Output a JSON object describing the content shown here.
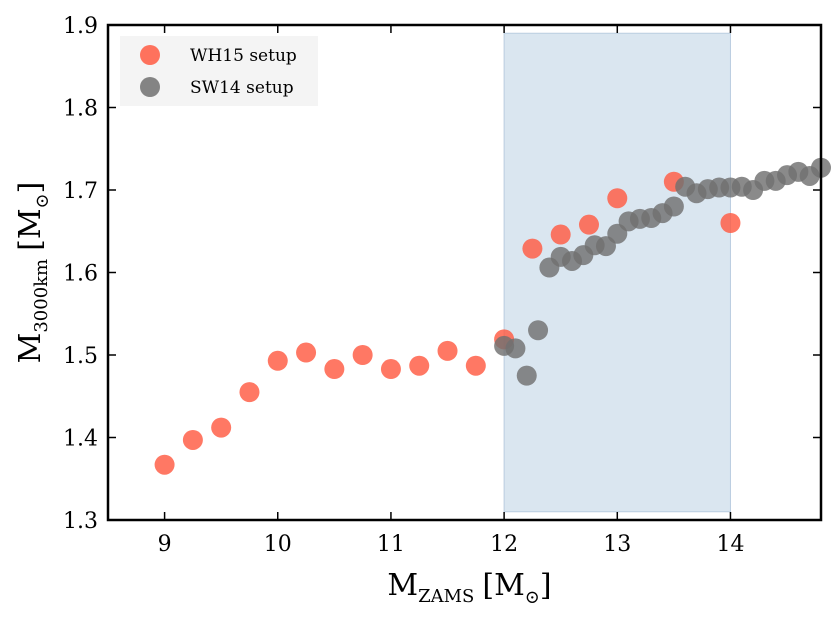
{
  "chart_data": {
    "type": "scatter",
    "title": "",
    "xlabel": {
      "main": "M",
      "sub": "ZAMS",
      "unit_open": "[M",
      "unit_sub": "⊙",
      "unit_close": "]"
    },
    "ylabel": {
      "main": "M",
      "sub": "3000km",
      "unit_open": "[M",
      "unit_sub": "⊙",
      "unit_close": "]"
    },
    "xlim": [
      8.5,
      14.8
    ],
    "ylim": [
      1.3,
      1.9
    ],
    "xticks": [
      9,
      10,
      11,
      12,
      13,
      14
    ],
    "yticks": [
      1.3,
      1.4,
      1.5,
      1.6,
      1.7,
      1.8,
      1.9
    ],
    "xtick_labels": [
      "9",
      "10",
      "11",
      "12",
      "13",
      "14"
    ],
    "ytick_labels": [
      "1.3",
      "1.4",
      "1.5",
      "1.6",
      "1.7",
      "1.8",
      "1.9"
    ],
    "shaded_region": {
      "x": [
        12.0,
        14.0
      ],
      "y": [
        1.31,
        1.89
      ]
    },
    "legend_position": "top-left",
    "series": [
      {
        "name": "WH15 setup",
        "color": "#ff5a42",
        "points": [
          [
            9.0,
            1.367
          ],
          [
            9.25,
            1.397
          ],
          [
            9.5,
            1.412
          ],
          [
            9.75,
            1.455
          ],
          [
            10.0,
            1.493
          ],
          [
            10.25,
            1.503
          ],
          [
            10.5,
            1.483
          ],
          [
            10.75,
            1.5
          ],
          [
            11.0,
            1.483
          ],
          [
            11.25,
            1.487
          ],
          [
            11.5,
            1.505
          ],
          [
            11.75,
            1.487
          ],
          [
            12.0,
            1.519
          ],
          [
            12.25,
            1.629
          ],
          [
            12.5,
            1.646
          ],
          [
            12.75,
            1.658
          ],
          [
            13.0,
            1.69
          ],
          [
            13.5,
            1.71
          ],
          [
            14.0,
            1.66
          ]
        ]
      },
      {
        "name": "SW14 setup",
        "color": "#707070",
        "points": [
          [
            12.0,
            1.511
          ],
          [
            12.1,
            1.508
          ],
          [
            12.2,
            1.475
          ],
          [
            12.3,
            1.53
          ],
          [
            12.4,
            1.606
          ],
          [
            12.5,
            1.619
          ],
          [
            12.6,
            1.614
          ],
          [
            12.7,
            1.621
          ],
          [
            12.8,
            1.633
          ],
          [
            12.9,
            1.632
          ],
          [
            13.0,
            1.647
          ],
          [
            13.1,
            1.662
          ],
          [
            13.2,
            1.665
          ],
          [
            13.3,
            1.666
          ],
          [
            13.4,
            1.672
          ],
          [
            13.5,
            1.68
          ],
          [
            13.6,
            1.704
          ],
          [
            13.7,
            1.696
          ],
          [
            13.8,
            1.701
          ],
          [
            13.9,
            1.703
          ],
          [
            14.0,
            1.703
          ],
          [
            14.1,
            1.704
          ],
          [
            14.2,
            1.7
          ],
          [
            14.3,
            1.711
          ],
          [
            14.4,
            1.711
          ],
          [
            14.5,
            1.718
          ],
          [
            14.6,
            1.722
          ],
          [
            14.7,
            1.717
          ],
          [
            14.8,
            1.727
          ]
        ]
      }
    ]
  }
}
